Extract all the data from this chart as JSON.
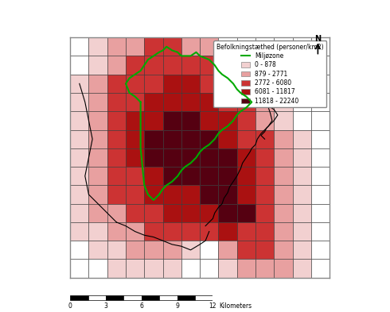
{
  "title": "",
  "legend_title1": "Miljøzone",
  "legend_title2": "Befolkningstæthed (personer/km2)",
  "legend_labels": [
    "0 - 878",
    "879 - 2771",
    "2772 - 6080",
    "6081 - 11817",
    "11818 - 22240"
  ],
  "legend_colors": [
    "#f2d0d0",
    "#e8a0a0",
    "#cc3333",
    "#aa1111",
    "#550011"
  ],
  "scale_bar_label": "Kilometers",
  "scale_ticks": [
    0,
    3,
    6,
    9,
    12
  ],
  "grid_color": "#333333",
  "boundary_color": "#000000",
  "miljozone_color": "#00aa00",
  "background": "#ffffff",
  "map_background": "#ffffff"
}
